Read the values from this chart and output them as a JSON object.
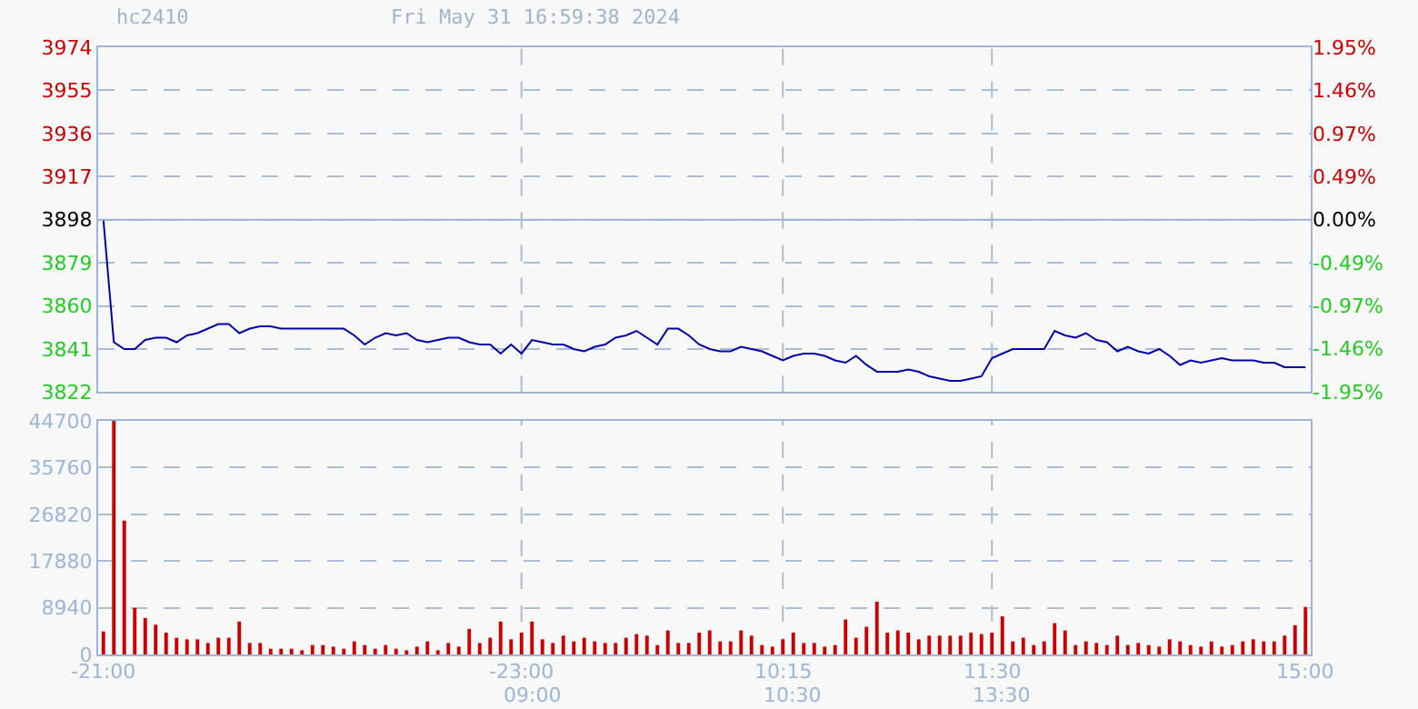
{
  "chart_data": [
    {
      "type": "line",
      "title": "hc2410",
      "subtitle": "Fri May 31 16:59:38 2024",
      "grid": true,
      "marker": "none",
      "line_style": "solid",
      "tick_labels": "y",
      "categories": [
        null,
        null,
        null,
        null,
        null,
        null,
        null,
        null,
        null,
        null,
        null,
        null,
        null,
        null,
        null,
        null,
        null,
        null,
        null,
        null,
        null,
        null,
        null,
        null,
        null,
        null,
        null,
        null,
        null,
        null,
        null,
        null,
        null,
        null,
        null,
        null,
        null,
        null,
        null,
        null,
        null,
        null,
        null,
        null,
        null,
        null,
        null,
        null,
        null,
        null,
        null,
        null,
        null,
        null,
        null,
        null,
        null,
        null,
        null,
        null,
        null,
        null,
        null,
        null,
        null,
        null,
        null,
        null,
        null,
        null,
        null,
        null,
        null,
        null,
        null,
        null,
        null,
        null,
        null,
        null,
        null,
        null,
        null,
        null,
        null,
        null,
        null,
        null,
        null,
        null,
        null,
        null,
        null,
        null,
        null,
        null,
        null,
        null,
        null,
        null,
        null,
        null,
        null,
        null,
        null,
        null,
        null,
        null,
        null,
        null,
        null,
        null,
        null,
        null,
        null,
        null
      ],
      "series": [
        {
          "color": "#0000aa",
          "values": [
            3898,
            3844,
            3841,
            3841,
            3845,
            3846,
            3846,
            3844,
            3847,
            3848,
            3850,
            3852,
            3852,
            3848,
            3850,
            3851,
            3851,
            3850,
            3850,
            3850,
            3850,
            3850,
            3850,
            3850,
            3847,
            3843,
            3846,
            3848,
            3847,
            3848,
            3845,
            3844,
            3845,
            3846,
            3846,
            3844,
            3843,
            3843,
            3839,
            3843,
            3839,
            3845,
            3844,
            3843,
            3843,
            3841,
            3840,
            3842,
            3843,
            3846,
            3847,
            3849,
            3846,
            3843,
            3850,
            3850,
            3847,
            3843,
            3841,
            3840,
            3840,
            3842,
            3841,
            3840,
            3838,
            3836,
            3838,
            3839,
            3839,
            3838,
            3836,
            3835,
            3838,
            3834,
            3831,
            3831,
            3831,
            3832,
            3831,
            3829,
            3828,
            3827,
            3827,
            3828,
            3829,
            3837,
            3839,
            3841,
            3841,
            3841,
            3841,
            3849,
            3847,
            3846,
            3848,
            3845,
            3844,
            3840,
            3842,
            3840,
            3839,
            3841,
            3838,
            3834,
            3836,
            3835,
            3836,
            3837,
            3836,
            3836,
            3836,
            3835,
            3835,
            3833,
            3833,
            3833
          ]
        }
      ],
      "ylim": [
        3822,
        3974
      ],
      "yticks": [
        3822,
        3841,
        3860,
        3879,
        3898,
        3917,
        3936,
        3955,
        3974
      ],
      "y2lim": [
        -1.95,
        1.95
      ],
      "y2ticks": [
        {
          "value": -1.95,
          "label": "-1.95%"
        },
        {
          "value": -1.46,
          "label": "-1.46%"
        },
        {
          "value": -0.97,
          "label": "-0.97%"
        },
        {
          "value": -0.49,
          "label": "-0.49%"
        },
        {
          "value": 0,
          "label": "0.00%"
        },
        {
          "value": 0.49,
          "label": "0.49%"
        },
        {
          "value": 0.97,
          "label": "0.97%"
        },
        {
          "value": 1.46,
          "label": "1.46%"
        },
        {
          "value": 1.95,
          "label": "1.95%"
        }
      ],
      "ref_lines": [
        {
          "axis": "y",
          "value": 3898,
          "color": "#9db5d8",
          "line_style": "solid"
        }
      ]
    },
    {
      "type": "bar",
      "grid": true,
      "categories": [
        "-21:00",
        null,
        null,
        null,
        null,
        null,
        null,
        null,
        null,
        null,
        null,
        null,
        null,
        null,
        null,
        null,
        null,
        null,
        null,
        null,
        null,
        null,
        null,
        null,
        null,
        null,
        null,
        null,
        null,
        null,
        null,
        null,
        null,
        null,
        null,
        null,
        null,
        null,
        null,
        null,
        "-23:00",
        "09:00",
        null,
        null,
        null,
        null,
        null,
        null,
        null,
        null,
        null,
        null,
        null,
        null,
        null,
        null,
        null,
        null,
        null,
        null,
        null,
        null,
        null,
        null,
        null,
        "10:15",
        "10:30",
        null,
        null,
        null,
        null,
        null,
        null,
        null,
        null,
        null,
        null,
        null,
        null,
        null,
        null,
        null,
        null,
        null,
        null,
        "11:30",
        "13:30",
        null,
        null,
        null,
        null,
        null,
        null,
        null,
        null,
        null,
        null,
        null,
        null,
        null,
        null,
        null,
        null,
        null,
        null,
        null,
        null,
        null,
        null,
        null,
        null,
        null,
        null,
        null,
        null,
        "15:00"
      ],
      "series": [
        {
          "color": "#cc0000",
          "values": [
            4400,
            44700,
            25600,
            8900,
            7000,
            5700,
            4200,
            3200,
            2900,
            2900,
            2200,
            3200,
            3200,
            6300,
            2200,
            2200,
            1100,
            1100,
            1100,
            800,
            1800,
            1800,
            1500,
            1100,
            2500,
            1800,
            1100,
            1800,
            1100,
            800,
            1500,
            2500,
            800,
            2200,
            1500,
            4900,
            2200,
            3200,
            6300,
            2900,
            4200,
            6300,
            2900,
            2200,
            3600,
            2500,
            3200,
            2500,
            2200,
            2200,
            3200,
            3900,
            3600,
            1800,
            4600,
            2200,
            2200,
            4200,
            4600,
            2500,
            2500,
            4600,
            3600,
            1800,
            1500,
            2900,
            4200,
            2200,
            2200,
            1500,
            1800,
            6700,
            3200,
            5300,
            10100,
            4200,
            4600,
            4200,
            2900,
            3600,
            3600,
            3600,
            3600,
            4200,
            3900,
            4200,
            7300,
            2500,
            3200,
            1800,
            2500,
            6000,
            4600,
            1800,
            2500,
            2200,
            1800,
            3600,
            1800,
            2200,
            1800,
            1500,
            2900,
            2500,
            1800,
            1500,
            2500,
            1500,
            1800,
            2500,
            2900,
            2500,
            2500,
            3600,
            5600,
            9100
          ]
        }
      ],
      "ylim": [
        0,
        44700
      ],
      "yticks": [
        0,
        8940,
        17880,
        26820,
        35760,
        44700
      ]
    }
  ]
}
